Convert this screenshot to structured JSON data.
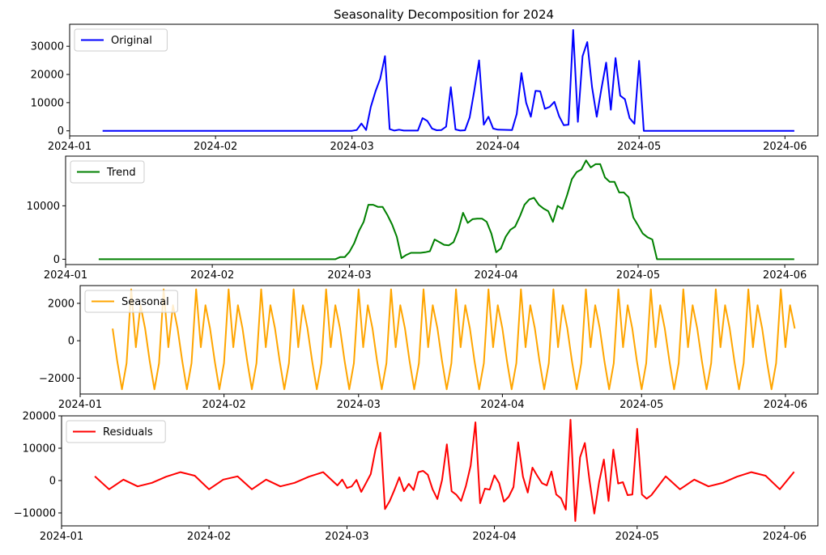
{
  "chart_data": [
    {
      "type": "line",
      "title": "Seasonality Decomposition for 2024",
      "xlabel": "",
      "ylabel": "",
      "ylim": [
        -1800,
        37800
      ],
      "xlim": [
        "2024-01-01",
        "2024-06-08"
      ],
      "x_ticks": [
        "2024-01",
        "2024-02",
        "2024-03",
        "2024-04",
        "2024-05",
        "2024-06"
      ],
      "y_ticks": [
        0,
        10000,
        20000,
        30000
      ],
      "legend_position": "top-left",
      "series": [
        {
          "name": "Original",
          "color": "#0000ff",
          "points": [
            [
              "2024-01-08",
              0
            ],
            [
              "2024-03-01",
              0
            ],
            [
              "2024-03-02",
              300
            ],
            [
              "2024-03-03",
              2600
            ],
            [
              "2024-03-04",
              300
            ],
            [
              "2024-03-05",
              8500
            ],
            [
              "2024-03-06",
              14000
            ],
            [
              "2024-03-07",
              18500
            ],
            [
              "2024-03-08",
              26500
            ],
            [
              "2024-03-09",
              600
            ],
            [
              "2024-03-10",
              100
            ],
            [
              "2024-03-11",
              400
            ],
            [
              "2024-03-12",
              100
            ],
            [
              "2024-03-15",
              100
            ],
            [
              "2024-03-16",
              4500
            ],
            [
              "2024-03-17",
              3500
            ],
            [
              "2024-03-18",
              800
            ],
            [
              "2024-03-19",
              200
            ],
            [
              "2024-03-20",
              300
            ],
            [
              "2024-03-21",
              1500
            ],
            [
              "2024-03-22",
              15500
            ],
            [
              "2024-03-23",
              500
            ],
            [
              "2024-03-24",
              100
            ],
            [
              "2024-03-25",
              200
            ],
            [
              "2024-03-26",
              4800
            ],
            [
              "2024-03-27",
              14500
            ],
            [
              "2024-03-28",
              25000
            ],
            [
              "2024-03-29",
              2200
            ],
            [
              "2024-03-30",
              5000
            ],
            [
              "2024-03-31",
              800
            ],
            [
              "2024-04-01",
              400
            ],
            [
              "2024-04-04",
              300
            ],
            [
              "2024-04-05",
              6000
            ],
            [
              "2024-04-06",
              20500
            ],
            [
              "2024-04-07",
              10000
            ],
            [
              "2024-04-08",
              5000
            ],
            [
              "2024-04-09",
              14200
            ],
            [
              "2024-04-10",
              14000
            ],
            [
              "2024-04-11",
              7800
            ],
            [
              "2024-04-12",
              8500
            ],
            [
              "2024-04-13",
              10300
            ],
            [
              "2024-04-14",
              5200
            ],
            [
              "2024-04-15",
              2000
            ],
            [
              "2024-04-16",
              2200
            ],
            [
              "2024-04-17",
              35800
            ],
            [
              "2024-04-18",
              3200
            ],
            [
              "2024-04-19",
              26500
            ],
            [
              "2024-04-20",
              31500
            ],
            [
              "2024-04-21",
              15500
            ],
            [
              "2024-04-22",
              5000
            ],
            [
              "2024-04-23",
              15000
            ],
            [
              "2024-04-24",
              24200
            ],
            [
              "2024-04-25",
              7500
            ],
            [
              "2024-04-26",
              25800
            ],
            [
              "2024-04-27",
              12500
            ],
            [
              "2024-04-28",
              11200
            ],
            [
              "2024-04-29",
              4500
            ],
            [
              "2024-04-30",
              2500
            ],
            [
              "2024-05-01",
              24800
            ],
            [
              "2024-05-02",
              0
            ],
            [
              "2024-06-03",
              0
            ]
          ]
        }
      ]
    },
    {
      "type": "line",
      "title": "",
      "ylim": [
        -1000,
        19300
      ],
      "xlim": [
        "2024-01-01",
        "2024-06-08"
      ],
      "x_ticks": [
        "2024-01",
        "2024-02",
        "2024-03",
        "2024-04",
        "2024-05",
        "2024-06"
      ],
      "y_ticks": [
        0,
        10000
      ],
      "legend_position": "top-left",
      "series": [
        {
          "name": "Trend",
          "color": "#008000",
          "points": [
            [
              "2024-01-08",
              0
            ],
            [
              "2024-02-27",
              0
            ],
            [
              "2024-02-28",
              400
            ],
            [
              "2024-02-29",
              400
            ],
            [
              "2024-03-01",
              1400
            ],
            [
              "2024-03-02",
              3000
            ],
            [
              "2024-03-03",
              5300
            ],
            [
              "2024-03-04",
              7000
            ],
            [
              "2024-03-05",
              10200
            ],
            [
              "2024-03-06",
              10200
            ],
            [
              "2024-03-07",
              9800
            ],
            [
              "2024-03-08",
              9800
            ],
            [
              "2024-03-09",
              8300
            ],
            [
              "2024-03-10",
              6500
            ],
            [
              "2024-03-11",
              4200
            ],
            [
              "2024-03-12",
              200
            ],
            [
              "2024-03-13",
              800
            ],
            [
              "2024-03-14",
              1200
            ],
            [
              "2024-03-15",
              1200
            ],
            [
              "2024-03-16",
              1200
            ],
            [
              "2024-03-17",
              1300
            ],
            [
              "2024-03-18",
              1500
            ],
            [
              "2024-03-19",
              3700
            ],
            [
              "2024-03-20",
              3200
            ],
            [
              "2024-03-21",
              2700
            ],
            [
              "2024-03-22",
              2600
            ],
            [
              "2024-03-23",
              3200
            ],
            [
              "2024-03-24",
              5400
            ],
            [
              "2024-03-25",
              8700
            ],
            [
              "2024-03-26",
              6800
            ],
            [
              "2024-03-27",
              7500
            ],
            [
              "2024-03-28",
              7600
            ],
            [
              "2024-03-29",
              7600
            ],
            [
              "2024-03-30",
              7000
            ],
            [
              "2024-03-31",
              4800
            ],
            [
              "2024-04-01",
              1300
            ],
            [
              "2024-04-02",
              2000
            ],
            [
              "2024-04-03",
              4200
            ],
            [
              "2024-04-04",
              5500
            ],
            [
              "2024-04-05",
              6100
            ],
            [
              "2024-04-06",
              8000
            ],
            [
              "2024-04-07",
              10200
            ],
            [
              "2024-04-08",
              11200
            ],
            [
              "2024-04-09",
              11500
            ],
            [
              "2024-04-10",
              10200
            ],
            [
              "2024-04-11",
              9500
            ],
            [
              "2024-04-12",
              9000
            ],
            [
              "2024-04-13",
              7000
            ],
            [
              "2024-04-14",
              10000
            ],
            [
              "2024-04-15",
              9400
            ],
            [
              "2024-04-16",
              12000
            ],
            [
              "2024-04-17",
              15000
            ],
            [
              "2024-04-18",
              16300
            ],
            [
              "2024-04-19",
              16800
            ],
            [
              "2024-04-20",
              18500
            ],
            [
              "2024-04-21",
              17200
            ],
            [
              "2024-04-22",
              17800
            ],
            [
              "2024-04-23",
              17800
            ],
            [
              "2024-04-24",
              15300
            ],
            [
              "2024-04-25",
              14500
            ],
            [
              "2024-04-26",
              14500
            ],
            [
              "2024-04-27",
              12500
            ],
            [
              "2024-04-28",
              12500
            ],
            [
              "2024-04-29",
              11600
            ],
            [
              "2024-04-30",
              7800
            ],
            [
              "2024-05-01",
              6300
            ],
            [
              "2024-05-02",
              4800
            ],
            [
              "2024-05-03",
              4100
            ],
            [
              "2024-05-04",
              3700
            ],
            [
              "2024-05-05",
              0
            ],
            [
              "2024-06-03",
              0
            ]
          ]
        }
      ]
    },
    {
      "type": "line",
      "title": "",
      "ylim": [
        -2850,
        2950
      ],
      "xlim": [
        "2024-01-01",
        "2024-06-08"
      ],
      "x_ticks": [
        "2024-01",
        "2024-02",
        "2024-03",
        "2024-04",
        "2024-05",
        "2024-06"
      ],
      "y_ticks": [
        -2000,
        0,
        2000
      ],
      "legend_position": "top-left",
      "series": [
        {
          "name": "Seasonal",
          "color": "#ffa500",
          "start_date": "2024-01-08",
          "end_date": "2024-06-03",
          "weekly_pattern": [
            650,
            -1100,
            -2600,
            -1200,
            2750,
            -350,
            1900
          ]
        }
      ]
    },
    {
      "type": "line",
      "title": "",
      "ylim": [
        -14000,
        20000
      ],
      "xlim": [
        "2024-01-01",
        "2024-06-08"
      ],
      "x_ticks": [
        "2024-01",
        "2024-02",
        "2024-03",
        "2024-04",
        "2024-05",
        "2024-06"
      ],
      "y_ticks": [
        -10000,
        0,
        10000,
        20000
      ],
      "legend_position": "top-left",
      "series": [
        {
          "name": "Residuals",
          "color": "#ff0000",
          "quiet_pattern": [
            1300,
            -2700,
            300,
            -1800,
            -700,
            1200,
            2600,
            1500,
            -2700,
            300
          ],
          "points": [
            [
              "2024-02-28",
              -1500
            ],
            [
              "2024-02-29",
              300
            ],
            [
              "2024-03-01",
              -2300
            ],
            [
              "2024-03-02",
              -1800
            ],
            [
              "2024-03-03",
              200
            ],
            [
              "2024-03-04",
              -3500
            ],
            [
              "2024-03-05",
              -800
            ],
            [
              "2024-03-06",
              2000
            ],
            [
              "2024-03-07",
              9600
            ],
            [
              "2024-03-08",
              14800
            ],
            [
              "2024-03-09",
              -8800
            ],
            [
              "2024-03-10",
              -6300
            ],
            [
              "2024-03-11",
              -2800
            ],
            [
              "2024-03-12",
              1000
            ],
            [
              "2024-03-13",
              -3300
            ],
            [
              "2024-03-14",
              -1000
            ],
            [
              "2024-03-15",
              -2900
            ],
            [
              "2024-03-16",
              2600
            ],
            [
              "2024-03-17",
              3000
            ],
            [
              "2024-03-18",
              1800
            ],
            [
              "2024-03-19",
              -2700
            ],
            [
              "2024-03-20",
              -5700
            ],
            [
              "2024-03-21",
              200
            ],
            [
              "2024-03-22",
              11200
            ],
            [
              "2024-03-23",
              -3300
            ],
            [
              "2024-03-24",
              -4400
            ],
            [
              "2024-03-25",
              -6300
            ],
            [
              "2024-03-26",
              -1700
            ],
            [
              "2024-03-27",
              4600
            ],
            [
              "2024-03-28",
              18000
            ],
            [
              "2024-03-29",
              -7000
            ],
            [
              "2024-03-30",
              -2500
            ],
            [
              "2024-03-31",
              -2800
            ],
            [
              "2024-04-01",
              1600
            ],
            [
              "2024-04-02",
              -800
            ],
            [
              "2024-04-03",
              -6500
            ],
            [
              "2024-04-04",
              -5000
            ],
            [
              "2024-04-05",
              -2000
            ],
            [
              "2024-04-06",
              11800
            ],
            [
              "2024-04-07",
              1200
            ],
            [
              "2024-04-08",
              -3700
            ],
            [
              "2024-04-09",
              4000
            ],
            [
              "2024-04-10",
              1500
            ],
            [
              "2024-04-11",
              -800
            ],
            [
              "2024-04-12",
              -1500
            ],
            [
              "2024-04-13",
              2800
            ],
            [
              "2024-04-14",
              -4300
            ],
            [
              "2024-04-15",
              -5500
            ],
            [
              "2024-04-16",
              -9000
            ],
            [
              "2024-04-17",
              18800
            ],
            [
              "2024-04-18",
              -12500
            ],
            [
              "2024-04-19",
              7200
            ],
            [
              "2024-04-20",
              11600
            ],
            [
              "2024-04-21",
              0
            ],
            [
              "2024-04-22",
              -10200
            ],
            [
              "2024-04-23",
              -500
            ],
            [
              "2024-04-24",
              6500
            ],
            [
              "2024-04-25",
              -6300
            ],
            [
              "2024-04-26",
              9600
            ],
            [
              "2024-04-27",
              -900
            ],
            [
              "2024-04-28",
              -500
            ],
            [
              "2024-04-29",
              -4500
            ],
            [
              "2024-04-30",
              -4300
            ],
            [
              "2024-05-01",
              16000
            ],
            [
              "2024-05-02",
              -4300
            ],
            [
              "2024-05-03",
              -5600
            ],
            [
              "2024-05-04",
              -4500
            ]
          ]
        }
      ]
    }
  ]
}
